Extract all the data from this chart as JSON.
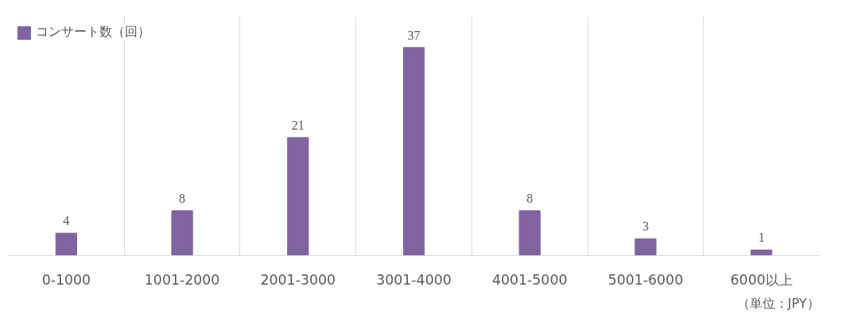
{
  "chart_data": {
    "type": "bar",
    "categories": [
      "0-1000",
      "1001-2000",
      "2001-3000",
      "3001-4000",
      "4001-5000",
      "5001-6000",
      "6000以上"
    ],
    "series": [
      {
        "name": "コンサート数（回）",
        "color": "#8064a2",
        "values": [
          4,
          8,
          21,
          37,
          8,
          3,
          1
        ]
      }
    ],
    "data_labels": true,
    "grid": "x",
    "legend": "top left",
    "annotations": [
      "（単位：JPY）"
    ]
  }
}
